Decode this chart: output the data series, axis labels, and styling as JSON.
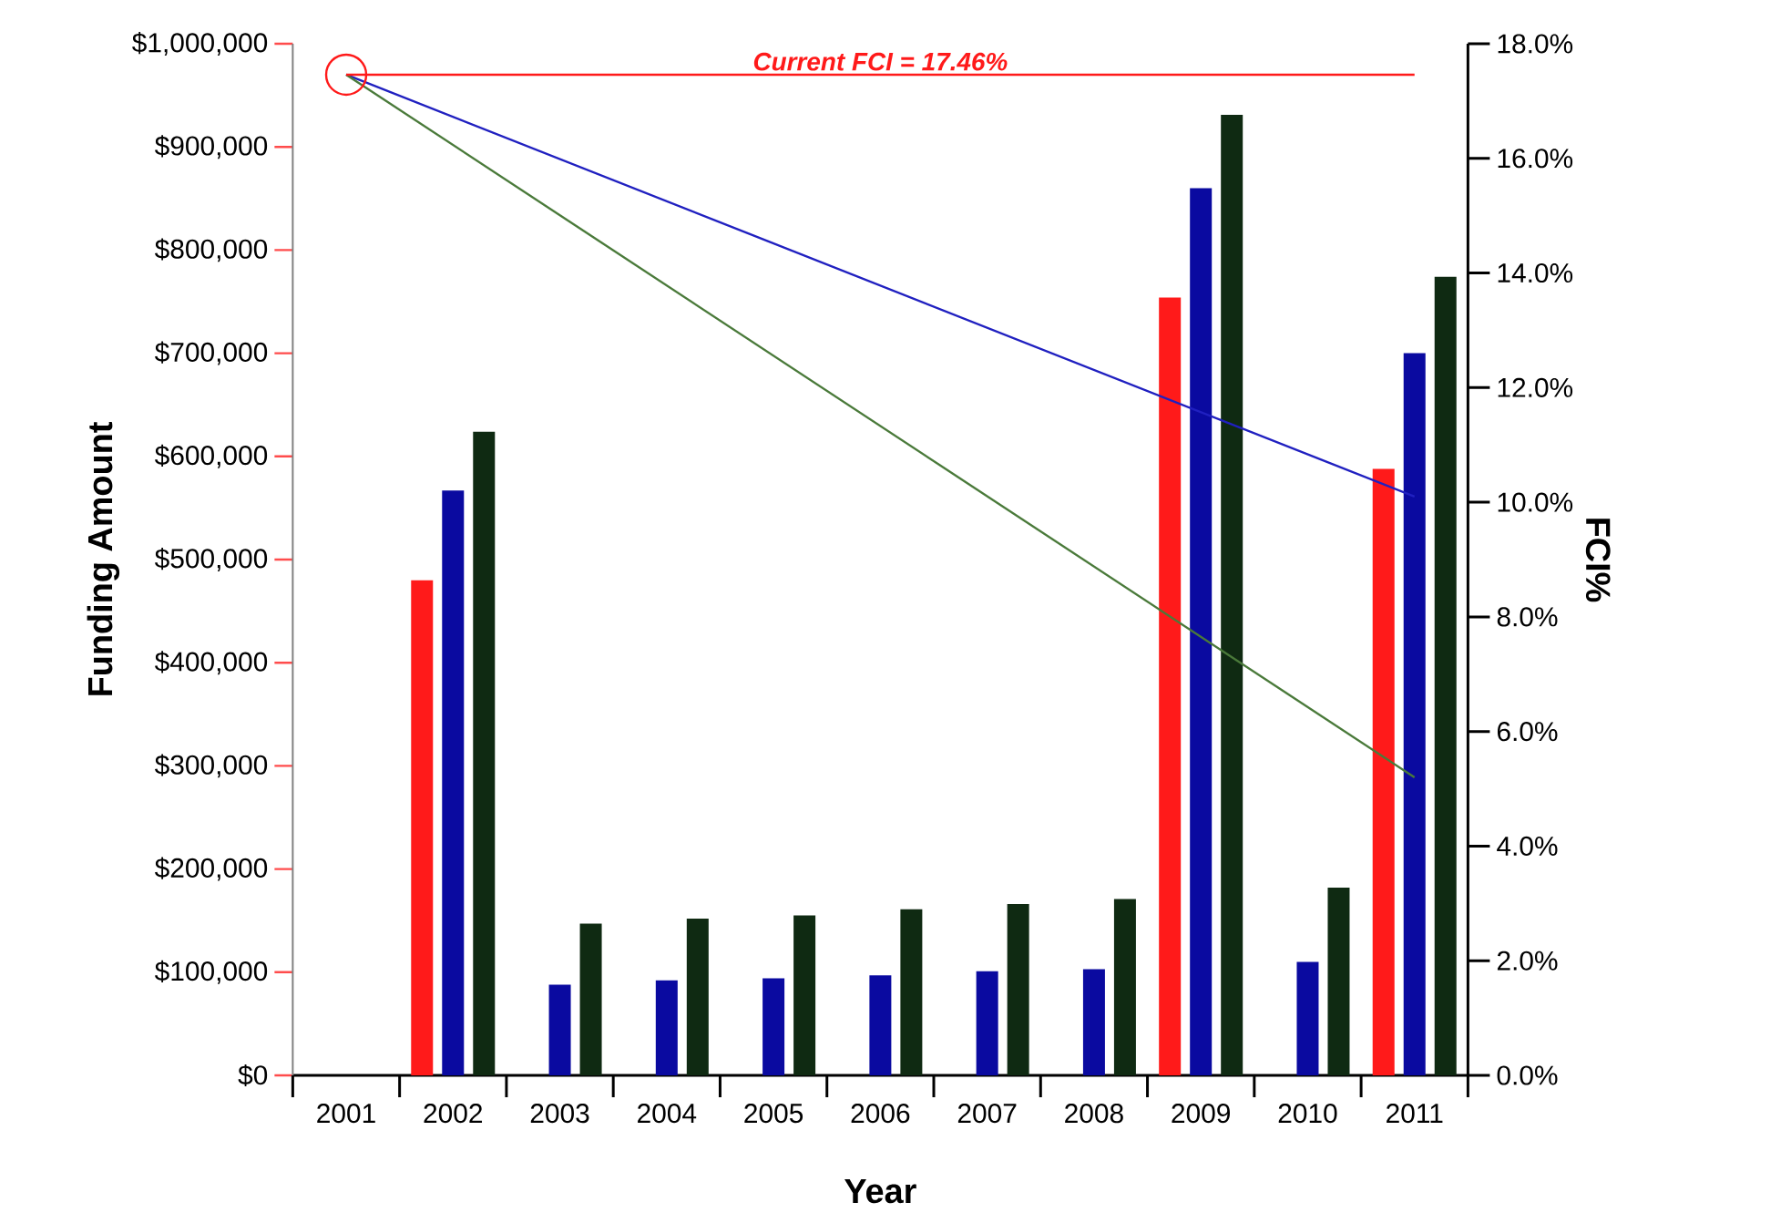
{
  "chart_data": {
    "type": "bar",
    "xlabel": "Year",
    "ylabel": "Funding Amount",
    "y2label": "FCI%",
    "categories": [
      "2001",
      "2002",
      "2003",
      "2004",
      "2005",
      "2006",
      "2007",
      "2008",
      "2009",
      "2010",
      "2011"
    ],
    "series": [
      {
        "color": "#ff1a1a",
        "values": [
          null,
          480000,
          null,
          null,
          null,
          null,
          null,
          null,
          754000,
          null,
          588000
        ]
      },
      {
        "color": "#0a0aa0",
        "values": [
          null,
          567000,
          88000,
          92000,
          94000,
          97000,
          101000,
          103000,
          860000,
          110000,
          700000
        ]
      },
      {
        "color": "#0f2a12",
        "values": [
          null,
          624000,
          147000,
          152000,
          155000,
          161000,
          166000,
          171000,
          931000,
          182000,
          774000
        ]
      },
      {
        "type": "line",
        "axis": "y2",
        "color": "#2020c0",
        "values": [
          17.46,
          null,
          null,
          null,
          null,
          null,
          null,
          null,
          null,
          null,
          10.1
        ]
      },
      {
        "type": "line",
        "axis": "y2",
        "color": "#4a7a3a",
        "values": [
          17.46,
          null,
          null,
          null,
          null,
          null,
          null,
          null,
          null,
          null,
          5.2
        ]
      },
      {
        "type": "scatter",
        "axis": "y2",
        "color": "#ff1a1a",
        "marker": "circle",
        "values": [
          17.46,
          null,
          null,
          null,
          null,
          null,
          null,
          null,
          null,
          null,
          null
        ]
      }
    ],
    "ylim": [
      0,
      1000000
    ],
    "yticks": [
      {
        "value": 0,
        "label": "$0"
      },
      {
        "value": 100000,
        "label": "$100,000"
      },
      {
        "value": 200000,
        "label": "$200,000"
      },
      {
        "value": 300000,
        "label": "$300,000"
      },
      {
        "value": 400000,
        "label": "$400,000"
      },
      {
        "value": 500000,
        "label": "$500,000"
      },
      {
        "value": 600000,
        "label": "$600,000"
      },
      {
        "value": 700000,
        "label": "$700,000"
      },
      {
        "value": 800000,
        "label": "$800,000"
      },
      {
        "value": 900000,
        "label": "$900,000"
      },
      {
        "value": 1000000,
        "label": "$1,000,000"
      }
    ],
    "y2lim": [
      0,
      18
    ],
    "y2ticks": [
      {
        "value": 0,
        "label": "0.0%"
      },
      {
        "value": 2,
        "label": "2.0%"
      },
      {
        "value": 4,
        "label": "4.0%"
      },
      {
        "value": 6,
        "label": "6.0%"
      },
      {
        "value": 8,
        "label": "8.0%"
      },
      {
        "value": 10,
        "label": "10.0%"
      },
      {
        "value": 12,
        "label": "12.0%"
      },
      {
        "value": 14,
        "label": "14.0%"
      },
      {
        "value": 16,
        "label": "16.0%"
      },
      {
        "value": 18,
        "label": "18.0%"
      }
    ],
    "ref_lines": [
      {
        "axis": "y2",
        "value": 17.46,
        "label": "Current FCI = 17.46%",
        "color": "#ff1a1a"
      }
    ]
  }
}
